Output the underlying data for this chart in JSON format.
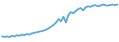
{
  "y_values": [
    18,
    17,
    18,
    17,
    19,
    18,
    20,
    19,
    21,
    20,
    22,
    21,
    23,
    24,
    25,
    26,
    27,
    28,
    30,
    32,
    35,
    38,
    42,
    48,
    44,
    52,
    42,
    55,
    60,
    58,
    62,
    65,
    67,
    63,
    68,
    70,
    69,
    71,
    72,
    70,
    71,
    73,
    72,
    71,
    72,
    73,
    72,
    73
  ],
  "line_color": "#5aabdc",
  "line_width": 1.3,
  "background_color": "#ffffff"
}
